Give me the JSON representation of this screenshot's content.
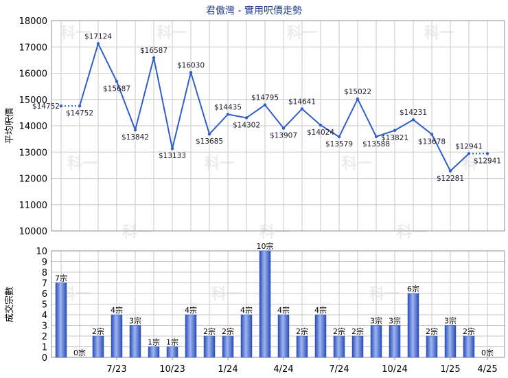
{
  "title": "君傲灣 - 實用呎價走勢",
  "count_suffix": "宗",
  "price_prefix": "$",
  "watermark_text": "科一",
  "colors": {
    "line": "#2f5fc8",
    "title": "#1f3d8a",
    "grid": "#c8c8c8",
    "bar_light": "#9fb6ef",
    "bar_dark": "#2a4db8"
  },
  "chart_data": [
    {
      "type": "line",
      "ylabel": "平均呎價",
      "ylim": [
        10000,
        18000
      ],
      "yticks": [
        10000,
        11000,
        12000,
        13000,
        14000,
        15000,
        16000,
        17000,
        18000
      ],
      "grid": true,
      "values": [
        14752,
        14752,
        17124,
        15687,
        13842,
        16587,
        13133,
        16030,
        13685,
        14435,
        14302,
        14795,
        13907,
        14641,
        14024,
        13579,
        15022,
        13588,
        13821,
        14231,
        13678,
        12281,
        12941,
        12941
      ],
      "labels": [
        "$14752",
        "$14752",
        "$17124",
        "$15687",
        "$13842",
        "$16587",
        "$13133",
        "$16030",
        "$13685",
        "$14435",
        "$14302",
        "$14795",
        "$13907",
        "$14641",
        "$14024",
        "$13579",
        "$15022",
        "$13588",
        "$13821",
        "$14231",
        "$13678",
        "$12281",
        "$12941",
        "$12941"
      ],
      "label_side": [
        "left",
        "below",
        "above",
        "below",
        "below",
        "above",
        "below",
        "above",
        "below",
        "above",
        "below",
        "above",
        "below",
        "above",
        "below",
        "below",
        "above",
        "below",
        "below",
        "above",
        "below",
        "below",
        "above",
        "below"
      ],
      "dotted_segments": [
        [
          0,
          1
        ],
        [
          22,
          23
        ]
      ]
    },
    {
      "type": "bar",
      "ylabel": "成交宗數",
      "ylim": [
        0,
        10
      ],
      "yticks": [
        0,
        1,
        2,
        3,
        4,
        5,
        6,
        7,
        8,
        9,
        10
      ],
      "grid": true,
      "values": [
        7,
        0,
        2,
        4,
        3,
        1,
        1,
        4,
        2,
        2,
        4,
        10,
        4,
        2,
        4,
        2,
        2,
        3,
        3,
        6,
        2,
        3,
        2,
        0
      ],
      "categories": [
        "",
        "",
        "",
        "7/23",
        "",
        "",
        "10/23",
        "",
        "",
        "1/24",
        "",
        "",
        "4/24",
        "",
        "",
        "7/24",
        "",
        "",
        "10/24",
        "",
        "",
        "1/25",
        "",
        "4/25"
      ]
    }
  ]
}
